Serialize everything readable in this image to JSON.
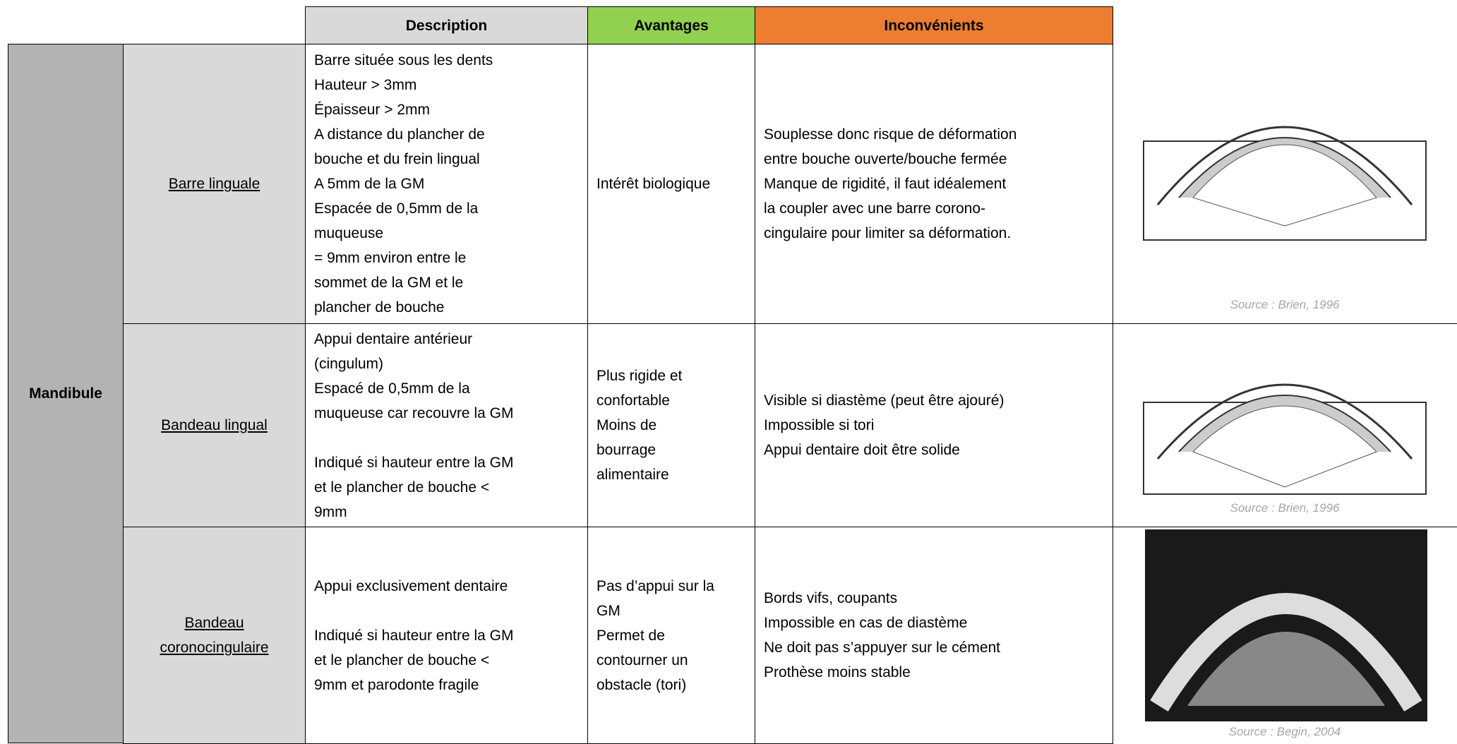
{
  "header": {
    "description": "Description",
    "avantages": "Avantages",
    "inconvenients": "Inconvénients"
  },
  "group": "Mandibule",
  "rows": [
    {
      "label": [
        "Barre linguale"
      ],
      "description": [
        [
          "Barre située sous les dents",
          "Hauteur > 3mm",
          "Épaisseur > 2mm",
          "A distance du plancher de",
          "bouche et du frein lingual",
          "A 5mm de la GM",
          "Espacée de 0,5mm de la",
          "muqueuse",
          "= 9mm environ entre le",
          "sommet de la GM et le",
          "plancher de bouche"
        ]
      ],
      "avantages": [
        [
          "Intérêt biologique"
        ]
      ],
      "inconvenients": [
        [
          "Souplesse donc risque de déformation",
          "entre bouche ouverte/bouche fermée",
          "Manque de rigidité, il faut idéalement",
          "la coupler avec une barre corono-",
          "cingulaire pour limiter sa déformation."
        ]
      ],
      "source": "Source : Brien, 1996"
    },
    {
      "label": [
        "Bandeau lingual"
      ],
      "description": [
        [
          "Appui dentaire antérieur",
          "(cingulum)",
          "Espacé de 0,5mm de la",
          "muqueuse car recouvre la GM"
        ],
        [
          "Indiqué si hauteur entre la GM",
          "et le plancher de bouche <",
          "9mm"
        ]
      ],
      "avantages": [
        [
          "Plus rigide et",
          "confortable",
          "Moins de",
          "bourrage",
          "alimentaire"
        ]
      ],
      "inconvenients": [
        [
          "Visible si diastème (peut être ajouré)",
          "Impossible si tori",
          "Appui dentaire doit être solide"
        ]
      ],
      "source": "Source : Brien, 1996"
    },
    {
      "label": [
        "Bandeau",
        "coronocingulaire"
      ],
      "description": [
        [
          "Appui exclusivement dentaire"
        ],
        [
          "Indiqué si hauteur entre la GM",
          "et le plancher de bouche <",
          "9mm et parodonte fragile"
        ]
      ],
      "avantages": [
        [
          "Pas d’appui sur la",
          "GM",
          "Permet de",
          "contourner un",
          "obstacle (tori)"
        ]
      ],
      "inconvenients": [
        [
          "Bords vifs, coupants",
          "Impossible en cas de diastème",
          "Ne doit pas s’appuyer sur le cément",
          "Prothèse moins stable"
        ]
      ],
      "source": "Source : Begin, 2004"
    }
  ]
}
